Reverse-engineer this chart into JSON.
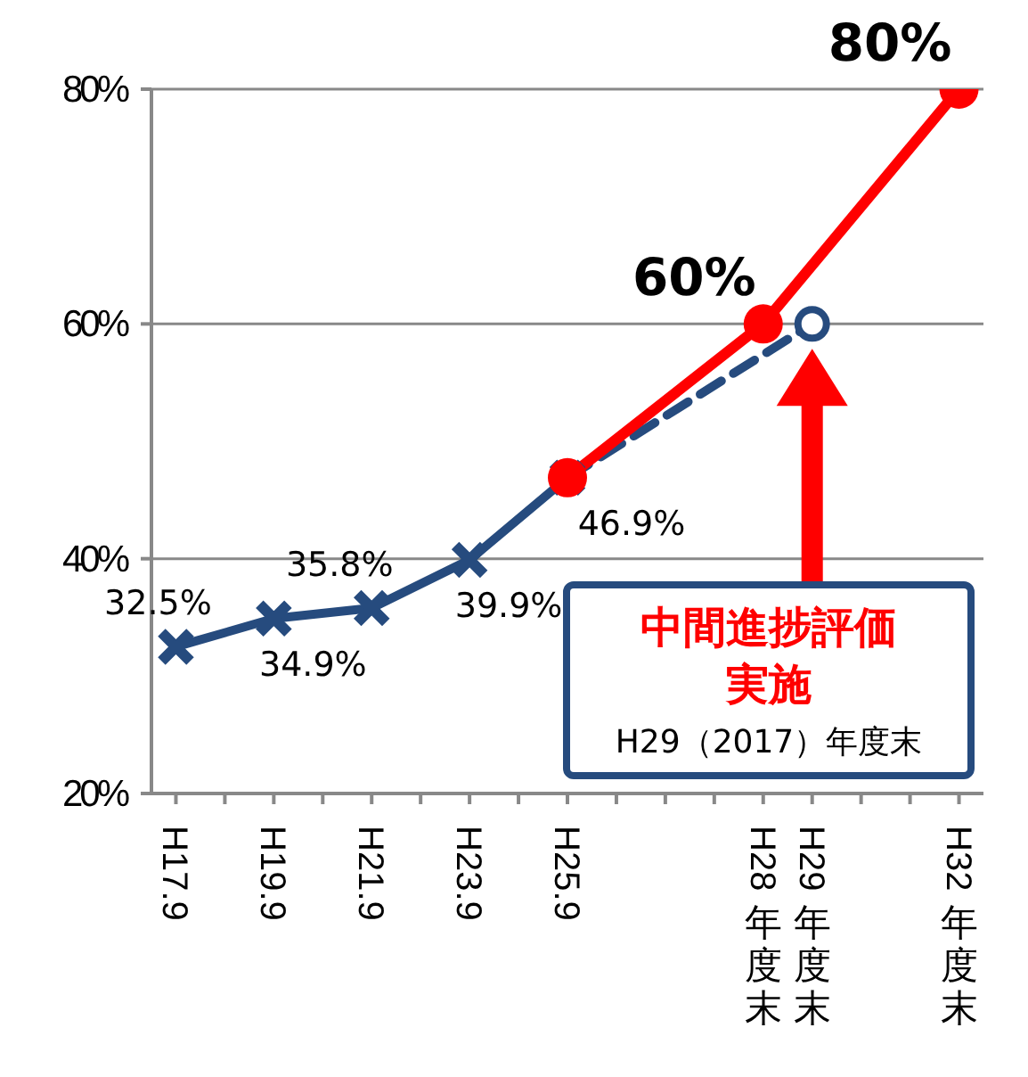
{
  "chart_data": {
    "type": "line",
    "categories": [
      "H17.9",
      null,
      "H19.9",
      null,
      "H21.9",
      null,
      "H23.9",
      null,
      "H25.9",
      null,
      null,
      null,
      "H28年度末",
      "H29年度末",
      null,
      null,
      "H32年度末"
    ],
    "ylim": [
      20,
      80
    ],
    "yticks": [
      {
        "value": 20,
        "label": "20%"
      },
      {
        "value": 40,
        "label": "40%"
      },
      {
        "value": 60,
        "label": "60%"
      },
      {
        "value": 80,
        "label": "80%"
      }
    ],
    "grid": "y",
    "series": [
      {
        "color": "#264b7e",
        "values": [
          32.5,
          null,
          34.9,
          null,
          35.8,
          null,
          39.9,
          null,
          46.9,
          null,
          null,
          null,
          null,
          null,
          null,
          null,
          null
        ],
        "marker": "cross",
        "line_style": "solid",
        "value_labels": [
          "32.5%",
          null,
          "34.9%",
          null,
          "35.8%",
          null,
          "39.9%",
          null,
          "46.9%",
          null,
          null,
          null,
          null,
          null,
          null,
          null,
          null
        ]
      },
      {
        "color": "#264b7e",
        "values": [
          null,
          null,
          null,
          null,
          null,
          null,
          null,
          null,
          46.9,
          null,
          null,
          null,
          null,
          60,
          null,
          null,
          null
        ],
        "marker": "circle",
        "line_style": "dashed"
      },
      {
        "color": "#ff0000",
        "values": [
          null,
          null,
          null,
          null,
          null,
          null,
          null,
          null,
          46.9,
          null,
          null,
          null,
          60,
          null,
          null,
          null,
          80
        ],
        "marker": "circle",
        "line_style": "solid",
        "value_labels": [
          null,
          null,
          null,
          null,
          null,
          null,
          null,
          null,
          null,
          null,
          null,
          null,
          "60%",
          null,
          null,
          null,
          "80%"
        ]
      }
    ],
    "annotations": [
      "中間進捗評価実施",
      "H29（2017）年度末"
    ]
  }
}
